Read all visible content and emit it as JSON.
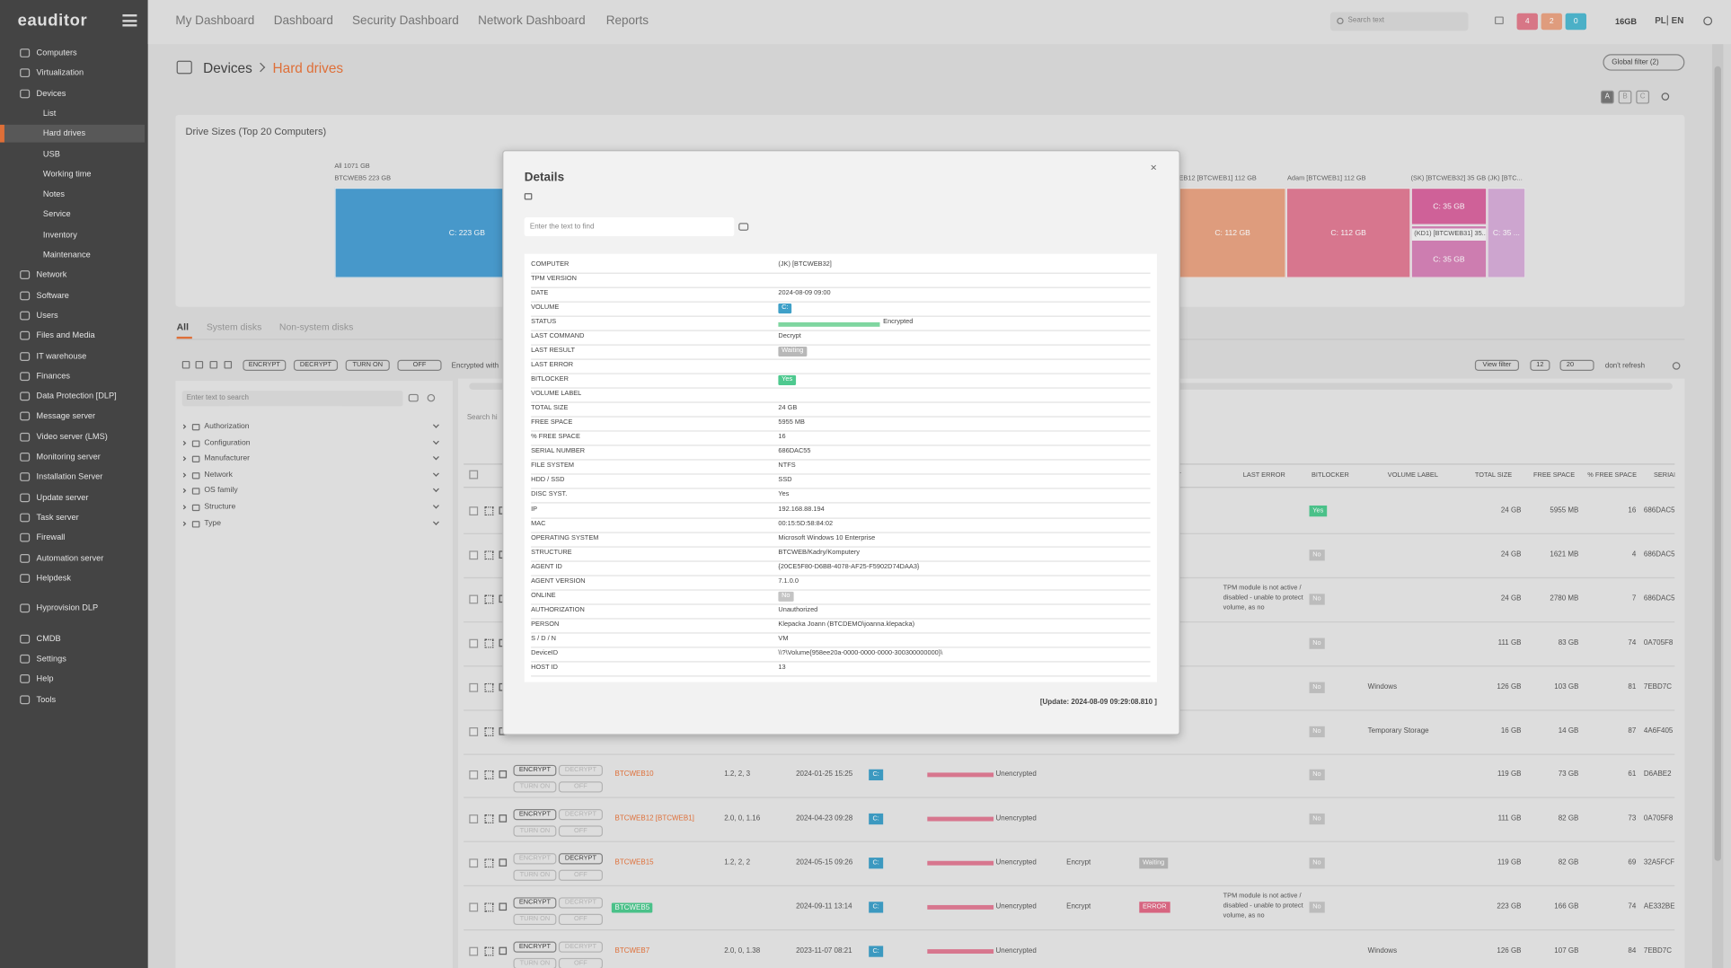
{
  "sidebar": {
    "logo": "eauditor",
    "groups": [
      [
        {
          "label": "Computers"
        },
        {
          "label": "Virtualization"
        },
        {
          "label": "Devices",
          "children": [
            "List",
            "Hard drives",
            "USB",
            "Working time",
            "Notes",
            "Service",
            "Inventory",
            "Maintenance"
          ],
          "active_child": 1
        },
        {
          "label": "Network"
        },
        {
          "label": "Software"
        },
        {
          "label": "Users"
        },
        {
          "label": "Files and Media"
        },
        {
          "label": "IT warehouse"
        },
        {
          "label": "Finances"
        },
        {
          "label": "Data Protection [DLP]"
        },
        {
          "label": "Message server"
        },
        {
          "label": "Video server (LMS)"
        },
        {
          "label": "Monitoring server"
        },
        {
          "label": "Installation Server"
        },
        {
          "label": "Update server"
        },
        {
          "label": "Task server"
        },
        {
          "label": "Firewall"
        },
        {
          "label": "Automation server"
        },
        {
          "label": "Helpdesk"
        }
      ],
      [
        {
          "label": "Hyprovision DLP"
        }
      ],
      [
        {
          "label": "CMDB"
        },
        {
          "label": "Settings"
        },
        {
          "label": "Help"
        },
        {
          "label": "Tools"
        }
      ]
    ]
  },
  "topbar": {
    "nav": [
      "My Dashboard",
      "Dashboard",
      "Security Dashboard",
      "Network Dashboard",
      "Reports"
    ],
    "search_placeholder": "Search text",
    "badges": [
      {
        "text": "4",
        "color": "#e07b8c"
      },
      {
        "text": "2",
        "color": "#e9a383"
      },
      {
        "text": "0",
        "color": "#4fb8d0"
      }
    ],
    "memory": "16GB",
    "languages": [
      "PL",
      "EN"
    ]
  },
  "breadcrumb": {
    "parent": "Devices",
    "current": "Hard drives"
  },
  "global_filter": "Global filter (2)",
  "view_buttons": [
    "A",
    "B",
    "C"
  ],
  "chart": {
    "title": "Drive Sizes (Top 20 Computers)",
    "header_labels": [
      "All 1071 GB",
      "BTCWEB5 223 GB",
      "EB12 [BTCWEB1] 112 GB",
      "Adam [BTCWEB1] 112 GB",
      "(SK) [BTCWEB32] 35 GB (JK) [BTC..."
    ],
    "blocks": [
      {
        "label": "C: 223 GB",
        "color": "#4a9fd3"
      },
      {
        "label": "C: 112 GB",
        "color": "#e8a383"
      },
      {
        "label": "C: 112 GB",
        "color": "#e07b94"
      },
      {
        "label": "C: 35 GB",
        "color": "#d8659f"
      },
      {
        "label": "C: 35 GB",
        "color": "#d683b8",
        "caption": "(KD1) [BTCWEB31] 35..."
      },
      {
        "label": "C: 35 ...",
        "color": "#d6acd8"
      }
    ]
  },
  "tabs": {
    "items": [
      "All",
      "System disks",
      "Non-system disks"
    ],
    "active": 0
  },
  "toolbar": {
    "buttons": [
      "ENCRYPT",
      "DECRYPT",
      "TURN ON",
      "OFF"
    ],
    "info": "Encrypted with",
    "view_filter": "View filter",
    "count": "12",
    "page_size": "20",
    "refresh": "don't refresh"
  },
  "filter_panel": {
    "search_placeholder": "Enter text to search",
    "tree": [
      "Authorization",
      "Configuration",
      "Manufacturer",
      "Network",
      "OS family",
      "Structure",
      "Type"
    ]
  },
  "table": {
    "search_placeholder": "Search hi",
    "headers": {
      "result": "LAST RESULT",
      "error": "LAST ERROR",
      "bitlocker": "BITLOCKER",
      "label": "VOLUME LABEL",
      "total": "TOTAL SIZE",
      "free": "FREE SPACE",
      "pct": "% FREE SPACE",
      "serial": "SERIAL NUMBER"
    },
    "rows": [
      {
        "bitlocker": "Yes",
        "total": "24 GB",
        "free": "5955 MB",
        "pct": "16",
        "serial": "686DAC5"
      },
      {
        "bitlocker": "No",
        "total": "24 GB",
        "free": "1621 MB",
        "pct": "4",
        "serial": "686DAC5"
      },
      {
        "error": "TPM module is not active / disabled - unable to protect volume, as no",
        "bitlocker": "No",
        "total": "24 GB",
        "free": "2780 MB",
        "pct": "7",
        "serial": "686DAC5"
      },
      {
        "bitlocker": "No",
        "total": "111 GB",
        "free": "83 GB",
        "pct": "74",
        "serial": "0A705F8"
      },
      {
        "bitlocker": "No",
        "label": "Windows",
        "total": "126 GB",
        "free": "103 GB",
        "pct": "81",
        "serial": "7EBD7C"
      },
      {
        "bitlocker": "No",
        "label": "Temporary Storage",
        "total": "16 GB",
        "free": "14 GB",
        "pct": "87",
        "serial": "4A6F405"
      },
      {
        "enabled": [
          true,
          false,
          false,
          false
        ],
        "name": "BTCWEB10",
        "version": "1.2, 2, 3",
        "date": "2024-01-25 15:25",
        "volume": "C:",
        "status": "Unencrypted",
        "bitlocker": "No",
        "total": "119 GB",
        "free": "73 GB",
        "pct": "61",
        "serial": "D6ABE2"
      },
      {
        "enabled": [
          true,
          false,
          false,
          false
        ],
        "name": "BTCWEB12 [BTCWEB1]",
        "version": "2.0, 0, 1.16",
        "date": "2024-04-23 09:28",
        "volume": "C:",
        "status": "Unencrypted",
        "bitlocker": "No",
        "total": "111 GB",
        "free": "82 GB",
        "pct": "73",
        "serial": "0A705F8"
      },
      {
        "enabled": [
          false,
          true,
          false,
          false
        ],
        "name": "BTCWEB15",
        "version": "1.2, 2, 2",
        "date": "2024-05-15 09:26",
        "volume": "C:",
        "status": "Unencrypted",
        "command": "Encrypt",
        "result": "Waiting",
        "bitlocker": "No",
        "total": "119 GB",
        "free": "82 GB",
        "pct": "69",
        "serial": "32A5FCF"
      },
      {
        "enabled": [
          true,
          false,
          false,
          false
        ],
        "name": "BTCWEB5",
        "online": true,
        "date": "2024-09-11 13:14",
        "volume": "C:",
        "status": "Unencrypted",
        "command": "Encrypt",
        "result": "ERROR",
        "error": "TPM module is not active / disabled - unable to protect volume, as no",
        "bitlocker": "No",
        "total": "223 GB",
        "free": "166 GB",
        "pct": "74",
        "serial": "AE332BE"
      },
      {
        "enabled": [
          true,
          false,
          false,
          false
        ],
        "name": "BTCWEB7",
        "version": "2.0, 0, 1.38",
        "date": "2023-11-07 08:21",
        "volume": "C:",
        "status": "Unencrypted",
        "label": "Windows",
        "total": "126 GB",
        "free": "107 GB",
        "pct": "84",
        "serial": "7EBD7C"
      }
    ]
  },
  "modal": {
    "title": "Details",
    "search_placeholder": "Enter the text to find",
    "rows": [
      {
        "key": "COMPUTER",
        "value": "(JK) [BTCWEB32]"
      },
      {
        "key": "TPM VERSION"
      },
      {
        "key": "DATE",
        "value": "2024-08-09 09:00"
      },
      {
        "key": "VOLUME",
        "value": "C:",
        "badge": "#3fa0c8"
      },
      {
        "key": "STATUS",
        "value": "Encrypted",
        "bar": "#7fd6a0"
      },
      {
        "key": "LAST COMMAND",
        "value": "Decrypt"
      },
      {
        "key": "LAST RESULT",
        "value": "Waiting",
        "badge": "#b8b8b8"
      },
      {
        "key": "LAST ERROR"
      },
      {
        "key": "BITLOCKER",
        "value": "Yes",
        "badge": "#4ec98f"
      },
      {
        "key": "VOLUME LABEL"
      },
      {
        "key": "TOTAL SIZE",
        "value": "24 GB"
      },
      {
        "key": "FREE SPACE",
        "value": "5955 MB"
      },
      {
        "key": "% FREE SPACE",
        "value": "16"
      },
      {
        "key": "SERIAL NUMBER",
        "value": "686DAC55"
      },
      {
        "key": "FILE SYSTEM",
        "value": "NTFS"
      },
      {
        "key": "HDD / SSD",
        "value": "SSD"
      },
      {
        "key": "DISC SYST.",
        "value": "Yes"
      },
      {
        "key": "IP",
        "value": "192.168.88.194"
      },
      {
        "key": "MAC",
        "value": "00:15:5D:58:84:02"
      },
      {
        "key": "OPERATING SYSTEM",
        "value": "Microsoft Windows 10 Enterprise"
      },
      {
        "key": "STRUCTURE",
        "value": "BTCWEB/Kadry/Komputery"
      },
      {
        "key": "AGENT ID",
        "value": "{20CE5F80-D6BB-4078-AF25-F5902D74DAA3}"
      },
      {
        "key": "AGENT VERSION",
        "value": "7.1.0.0"
      },
      {
        "key": "ONLINE",
        "value": "No",
        "badge": "#c4c4c4"
      },
      {
        "key": "AUTHORIZATION",
        "value": "Unauthorized"
      },
      {
        "key": "PERSON",
        "value": "Klepacka Joann (BTCDEMO\\joanna.klepacka)"
      },
      {
        "key": "S / D / N",
        "value": "VM"
      },
      {
        "key": "DeviceID",
        "value": "\\\\?\\Volume{958ee20a-0000-0000-0000-300300000000}\\"
      },
      {
        "key": "HOST ID",
        "value": "13"
      }
    ],
    "footer": "[Update:  2024-08-09 09:29:08.810 ]"
  }
}
